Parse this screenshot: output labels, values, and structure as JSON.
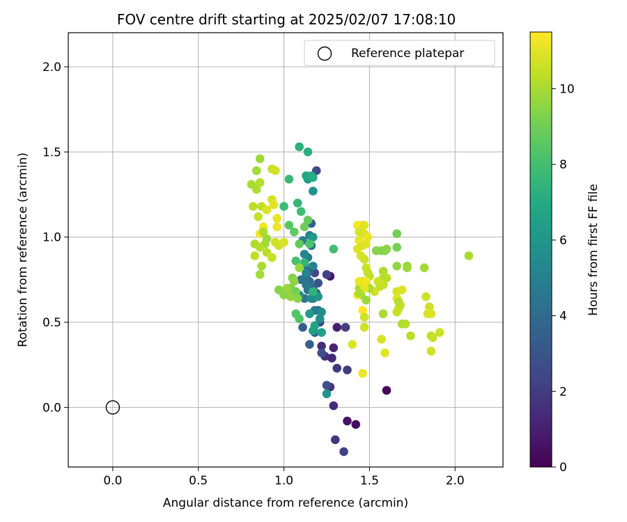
{
  "chart_data": {
    "type": "scatter",
    "title": "FOV centre drift starting at 2025/02/07 17:08:10",
    "xlabel": "Angular distance from reference (arcmin)",
    "ylabel": "Rotation from reference (arcmin)",
    "xlim": [
      -0.26,
      2.28
    ],
    "ylim": [
      -0.35,
      2.2
    ],
    "xticks": [
      "0.0",
      "0.5",
      "1.0",
      "1.5",
      "2.0"
    ],
    "yticks": [
      "0.0",
      "0.5",
      "1.0",
      "1.5",
      "2.0"
    ],
    "grid": true,
    "legend": {
      "position": "top-right",
      "entries": [
        {
          "label": "Reference platepar",
          "marker": "open-circle",
          "x": 0.0,
          "y": 0.0
        }
      ]
    },
    "colorbar": {
      "label": "Hours from first FF file",
      "colormap": "viridis",
      "range": [
        0,
        11.5
      ],
      "ticks": [
        "0",
        "2",
        "4",
        "6",
        "8",
        "10"
      ]
    },
    "points": [
      [
        1.6,
        0.1,
        0.2
      ],
      [
        1.42,
        -0.1,
        0.4
      ],
      [
        1.37,
        -0.08,
        0.6
      ],
      [
        1.27,
        0.77,
        0.8
      ],
      [
        1.31,
        0.47,
        1.0
      ],
      [
        1.29,
        0.35,
        1.2
      ],
      [
        1.28,
        0.29,
        1.3
      ],
      [
        1.29,
        0.01,
        1.4
      ],
      [
        1.22,
        0.36,
        1.5
      ],
      [
        1.24,
        0.3,
        1.6
      ],
      [
        1.27,
        0.12,
        1.7
      ],
      [
        1.3,
        -0.19,
        1.8
      ],
      [
        1.31,
        0.23,
        1.9
      ],
      [
        1.37,
        0.22,
        2.0
      ],
      [
        1.36,
        0.47,
        2.1
      ],
      [
        1.35,
        -0.26,
        2.2
      ],
      [
        1.25,
        0.78,
        2.3
      ],
      [
        1.18,
        0.79,
        2.4
      ],
      [
        1.21,
        0.5,
        2.5
      ],
      [
        1.19,
        1.39,
        2.6
      ],
      [
        1.25,
        0.13,
        2.7
      ],
      [
        1.22,
        0.32,
        2.8
      ],
      [
        1.17,
        0.64,
        2.9
      ],
      [
        1.2,
        0.73,
        3.0
      ],
      [
        1.19,
        0.67,
        3.1
      ],
      [
        1.15,
        0.8,
        3.2
      ],
      [
        1.18,
        0.44,
        3.3
      ],
      [
        1.11,
        0.47,
        3.4
      ],
      [
        1.15,
        0.37,
        3.5
      ],
      [
        1.17,
        0.7,
        3.6
      ],
      [
        1.16,
        1.08,
        3.7
      ],
      [
        1.2,
        0.57,
        3.8
      ],
      [
        1.13,
        0.77,
        3.9
      ],
      [
        1.12,
        0.84,
        4.0
      ],
      [
        1.15,
        0.74,
        4.1
      ],
      [
        1.16,
        0.95,
        4.2
      ],
      [
        1.14,
        0.69,
        4.3
      ],
      [
        1.1,
        0.75,
        4.4
      ],
      [
        1.12,
        0.64,
        4.5
      ],
      [
        1.13,
        0.72,
        4.6
      ],
      [
        1.18,
        0.57,
        4.7
      ],
      [
        1.14,
        0.88,
        4.8
      ],
      [
        1.11,
        0.98,
        4.9
      ],
      [
        1.15,
        1.01,
        5.0
      ],
      [
        1.17,
        0.83,
        5.1
      ],
      [
        1.13,
        0.79,
        5.2
      ],
      [
        1.12,
        0.9,
        5.3
      ],
      [
        1.09,
        0.66,
        5.4
      ],
      [
        1.16,
        0.64,
        5.5
      ],
      [
        1.22,
        0.56,
        5.6
      ],
      [
        1.21,
        0.52,
        5.7
      ],
      [
        1.17,
        1.27,
        5.8
      ],
      [
        1.25,
        0.08,
        5.9
      ],
      [
        1.2,
        0.65,
        6.0
      ],
      [
        1.17,
        1.0,
        6.1
      ],
      [
        1.15,
        0.55,
        6.2
      ],
      [
        1.14,
        1.34,
        6.3
      ],
      [
        1.17,
        0.45,
        6.4
      ],
      [
        1.22,
        0.44,
        6.5
      ],
      [
        1.18,
        0.48,
        6.6
      ],
      [
        1.13,
        1.36,
        6.8
      ],
      [
        1.16,
        1.36,
        7.0
      ],
      [
        1.17,
        1.35,
        7.1
      ],
      [
        1.14,
        1.5,
        7.2
      ],
      [
        1.09,
        1.53,
        7.3
      ],
      [
        1.17,
        0.68,
        7.4
      ],
      [
        1.12,
        0.85,
        7.5
      ],
      [
        1.08,
        1.2,
        7.6
      ],
      [
        1.03,
        1.34,
        7.7
      ],
      [
        1.0,
        1.18,
        7.8
      ],
      [
        1.1,
        1.15,
        7.9
      ],
      [
        1.29,
        0.93,
        8.0
      ],
      [
        1.07,
        0.86,
        8.1
      ],
      [
        1.15,
        0.96,
        8.2
      ],
      [
        1.09,
        0.52,
        8.3
      ],
      [
        1.07,
        0.55,
        8.4
      ],
      [
        1.03,
        1.07,
        8.5
      ],
      [
        1.06,
        1.03,
        8.6
      ],
      [
        1.09,
        0.96,
        8.7
      ],
      [
        1.14,
        1.1,
        8.8
      ],
      [
        1.12,
        1.06,
        8.9
      ],
      [
        1.07,
        0.68,
        9.0
      ],
      [
        1.04,
        0.7,
        9.1
      ],
      [
        1.02,
        0.69,
        9.2
      ],
      [
        1.05,
        0.76,
        9.3
      ],
      [
        0.99,
        0.68,
        9.4
      ],
      [
        1.08,
        0.64,
        9.5
      ],
      [
        1.06,
        0.74,
        9.6
      ],
      [
        1.09,
        0.82,
        9.7
      ],
      [
        0.86,
        1.46,
        9.8
      ],
      [
        0.84,
        1.39,
        9.9
      ],
      [
        0.81,
        1.31,
        10.0
      ],
      [
        0.84,
        1.28,
        10.1
      ],
      [
        0.86,
        1.32,
        10.2
      ],
      [
        0.82,
        1.18,
        10.3
      ],
      [
        0.87,
        1.18,
        10.4
      ],
      [
        0.85,
        1.12,
        10.5
      ],
      [
        0.93,
        1.4,
        10.6
      ],
      [
        0.95,
        1.39,
        10.7
      ],
      [
        0.93,
        1.22,
        10.8
      ],
      [
        0.9,
        1.16,
        10.9
      ],
      [
        0.94,
        1.19,
        11.0
      ],
      [
        0.96,
        1.11,
        11.1
      ],
      [
        0.96,
        1.06,
        11.2
      ],
      [
        0.88,
        1.06,
        11.3
      ],
      [
        0.86,
        1.02,
        11.4
      ],
      [
        0.88,
        1.03,
        10.0
      ],
      [
        0.9,
        0.99,
        9.8
      ],
      [
        0.89,
        0.96,
        9.9
      ],
      [
        0.83,
        0.96,
        10.1
      ],
      [
        0.86,
        0.94,
        10.2
      ],
      [
        0.9,
        0.91,
        10.3
      ],
      [
        0.83,
        0.89,
        10.4
      ],
      [
        0.93,
        0.88,
        10.5
      ],
      [
        0.95,
        0.97,
        10.6
      ],
      [
        0.97,
        0.95,
        10.7
      ],
      [
        1.0,
        0.97,
        10.8
      ],
      [
        0.87,
        0.83,
        10.0
      ],
      [
        0.86,
        0.78,
        9.9
      ],
      [
        1.01,
        0.69,
        9.8
      ],
      [
        1.02,
        0.7,
        9.7
      ],
      [
        1.04,
        0.65,
        9.6
      ],
      [
        1.0,
        0.66,
        9.5
      ],
      [
        0.97,
        0.69,
        9.4
      ],
      [
        1.66,
        1.02,
        9.0
      ],
      [
        1.66,
        0.94,
        9.1
      ],
      [
        1.59,
        0.92,
        9.2
      ],
      [
        1.57,
        0.92,
        9.3
      ],
      [
        1.54,
        0.92,
        9.4
      ],
      [
        1.6,
        0.93,
        9.5
      ],
      [
        1.66,
        0.83,
        9.6
      ],
      [
        1.72,
        0.83,
        9.7
      ],
      [
        1.72,
        0.82,
        9.8
      ],
      [
        1.82,
        0.82,
        9.9
      ],
      [
        2.08,
        0.89,
        10.0
      ],
      [
        1.58,
        0.8,
        10.1
      ],
      [
        1.58,
        0.76,
        10.2
      ],
      [
        1.6,
        0.76,
        10.3
      ],
      [
        1.58,
        0.72,
        10.4
      ],
      [
        1.56,
        0.71,
        10.5
      ],
      [
        1.55,
        0.74,
        10.6
      ],
      [
        1.53,
        0.68,
        10.7
      ],
      [
        1.66,
        0.68,
        10.8
      ],
      [
        1.69,
        0.69,
        10.9
      ],
      [
        1.66,
        0.64,
        11.0
      ],
      [
        1.67,
        0.62,
        10.2
      ],
      [
        1.68,
        0.6,
        10.3
      ],
      [
        1.67,
        0.58,
        10.4
      ],
      [
        1.66,
        0.56,
        10.5
      ],
      [
        1.83,
        0.65,
        10.6
      ],
      [
        1.85,
        0.59,
        10.7
      ],
      [
        1.84,
        0.55,
        10.8
      ],
      [
        1.86,
        0.55,
        10.9
      ],
      [
        1.58,
        0.55,
        10.0
      ],
      [
        1.69,
        0.49,
        10.1
      ],
      [
        1.71,
        0.49,
        10.2
      ],
      [
        1.74,
        0.42,
        10.3
      ],
      [
        1.86,
        0.42,
        10.4
      ],
      [
        1.87,
        0.41,
        10.5
      ],
      [
        1.91,
        0.44,
        10.6
      ],
      [
        1.86,
        0.33,
        10.7
      ],
      [
        1.57,
        0.4,
        10.8
      ],
      [
        1.4,
        0.37,
        10.9
      ],
      [
        1.59,
        0.32,
        11.0
      ],
      [
        1.46,
        0.2,
        11.2
      ],
      [
        1.43,
        1.07,
        11.3
      ],
      [
        1.45,
        1.07,
        11.4
      ],
      [
        1.47,
        1.07,
        11.0
      ],
      [
        1.44,
        1.03,
        10.8
      ],
      [
        1.47,
        1.02,
        10.9
      ],
      [
        1.44,
        0.98,
        11.1
      ],
      [
        1.49,
        1.0,
        11.2
      ],
      [
        1.45,
        0.96,
        11.3
      ],
      [
        1.48,
        0.96,
        11.0
      ],
      [
        1.43,
        0.93,
        10.9
      ],
      [
        1.45,
        0.89,
        10.8
      ],
      [
        1.47,
        0.87,
        10.7
      ],
      [
        1.48,
        0.82,
        10.6
      ],
      [
        1.49,
        0.79,
        10.5
      ],
      [
        1.5,
        0.77,
        10.4
      ],
      [
        1.46,
        0.74,
        10.3
      ],
      [
        1.48,
        0.73,
        10.2
      ],
      [
        1.5,
        0.7,
        10.1
      ],
      [
        1.44,
        0.7,
        10.0
      ],
      [
        1.45,
        0.66,
        9.9
      ],
      [
        1.48,
        0.63,
        9.8
      ],
      [
        1.46,
        0.57,
        11.5
      ],
      [
        1.47,
        0.53,
        10.6
      ],
      [
        1.47,
        0.47,
        10.7
      ],
      [
        1.44,
        0.74,
        11.2
      ],
      [
        1.43,
        0.66,
        11.4
      ],
      [
        1.47,
        0.7,
        11.1
      ],
      [
        1.48,
        0.74,
        11.3
      ],
      [
        1.44,
        0.67,
        10.0
      ],
      [
        1.46,
        0.95,
        10.9
      ]
    ]
  }
}
